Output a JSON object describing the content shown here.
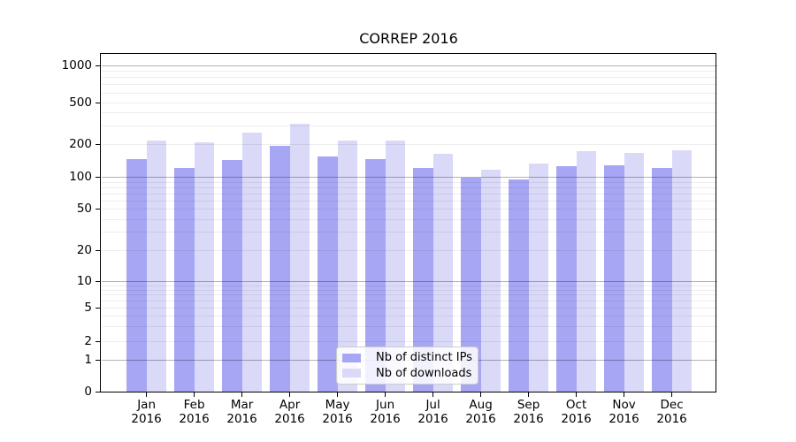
{
  "figure": {
    "title": "CORREP 2016"
  },
  "chart_data": {
    "type": "bar",
    "title": "CORREP 2016",
    "categories": [
      "Jan 2016",
      "Feb 2016",
      "Mar 2016",
      "Apr 2016",
      "May 2016",
      "Jun 2016",
      "Jul 2016",
      "Aug 2016",
      "Sep 2016",
      "Oct 2016",
      "Nov 2016",
      "Dec 2016"
    ],
    "x_tick_line1": [
      "Jan",
      "Feb",
      "Mar",
      "Apr",
      "May",
      "Jun",
      "Jul",
      "Aug",
      "Sep",
      "Oct",
      "Nov",
      "Dec"
    ],
    "x_tick_line2": "2016",
    "series": [
      {
        "name": "Nb of distinct IPs",
        "color": "#a6a6f4",
        "values": [
          146,
          122,
          144,
          193,
          154,
          146,
          122,
          100,
          96,
          126,
          128,
          122
        ]
      },
      {
        "name": "Nb of downloads",
        "color": "#dadaf8",
        "values": [
          215,
          207,
          258,
          315,
          216,
          215,
          163,
          118,
          133,
          172,
          167,
          176
        ]
      }
    ],
    "y_ticks": [
      0,
      1,
      2,
      5,
      10,
      20,
      50,
      100,
      200,
      500,
      1000
    ],
    "y_scale": "symlog (logarithmic above 1, linear between 0 and 1)",
    "ylim": [
      0,
      1200
    ],
    "grid": {
      "minor_lines": "log minor gridlines at 2-9, 20-90, 200-900 (drawn over bars)",
      "major_lines": [
        1,
        10,
        100,
        1000
      ]
    },
    "legend_position": "lower center"
  }
}
